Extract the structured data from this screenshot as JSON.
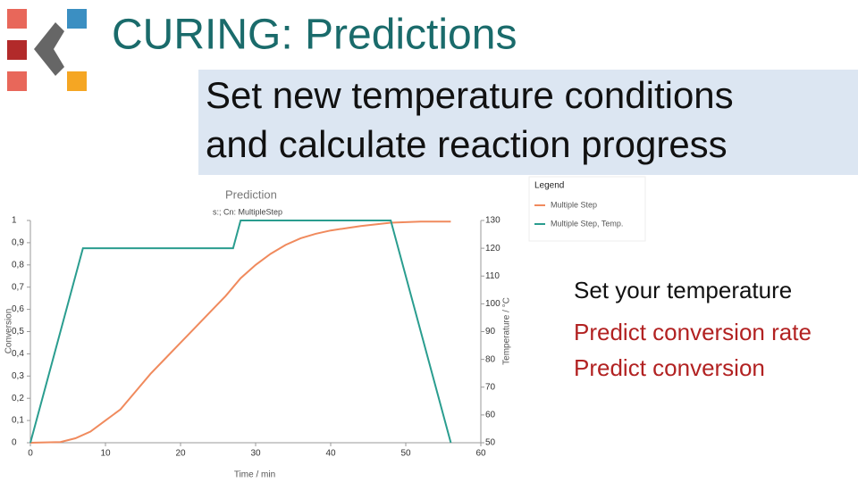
{
  "slide": {
    "title": "CURING: Predictions",
    "banner": [
      "Set new temperature conditions",
      "and calculate reaction progress"
    ],
    "notes": [
      "Set your temperature",
      "Predict conversion rate",
      "Predict conversion"
    ]
  },
  "chart_data": {
    "type": "line",
    "title": "Prediction",
    "subtitle": "s:; Cn: MultipleStep",
    "xlabel": "Time / min",
    "ylabel": "Conversion",
    "y2label": "Temperature / °C",
    "legend_title": "Legend",
    "legend": "top-right",
    "xlim": [
      0,
      60
    ],
    "xticks": [
      0,
      10,
      20,
      30,
      40,
      50,
      60
    ],
    "ylim": [
      0,
      1
    ],
    "yticks": [
      0,
      {
        "value": 0.1,
        "label": "0,1"
      },
      {
        "value": 0.2,
        "label": "0,2"
      },
      {
        "value": 0.3,
        "label": "0,3"
      },
      {
        "value": 0.4,
        "label": "0,4"
      },
      {
        "value": 0.5,
        "label": "0,5"
      },
      {
        "value": 0.6,
        "label": "0,6"
      },
      {
        "value": 0.7,
        "label": "0,7"
      },
      {
        "value": 0.8,
        "label": "0,8"
      },
      {
        "value": 0.9,
        "label": "0,9"
      },
      1
    ],
    "y2lim": [
      50,
      130
    ],
    "y2ticks": [
      50,
      60,
      70,
      80,
      90,
      100,
      110,
      120,
      130
    ],
    "series": [
      {
        "name": "Multiple Step",
        "color": "#f08a5d",
        "x": [
          0,
          4,
          6,
          8,
          10,
          12,
          14,
          16,
          18,
          20,
          22,
          24,
          26,
          27,
          28,
          30,
          32,
          34,
          36,
          38,
          40,
          44,
          48,
          52,
          56
        ],
        "values": [
          0,
          0.003,
          0.02,
          0.05,
          0.1,
          0.15,
          0.23,
          0.31,
          0.38,
          0.45,
          0.52,
          0.59,
          0.66,
          0.7,
          0.74,
          0.8,
          0.85,
          0.89,
          0.92,
          0.94,
          0.955,
          0.975,
          0.99,
          0.995,
          0.995
        ]
      },
      {
        "name": "Multiple Step, Temp.",
        "color": "#2a9d8f",
        "axis": "y2",
        "x": [
          0,
          7,
          27,
          28,
          48,
          56
        ],
        "values": [
          50,
          120,
          120,
          130,
          130,
          50
        ]
      }
    ]
  }
}
